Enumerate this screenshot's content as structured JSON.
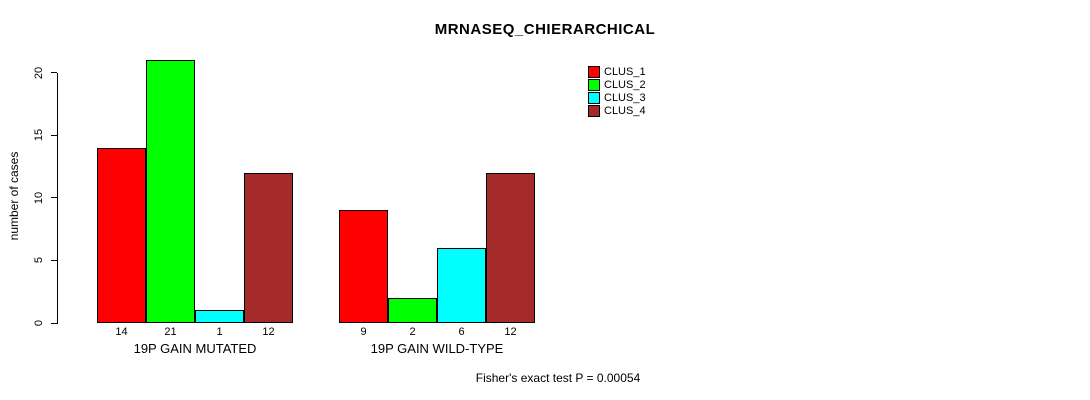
{
  "title": "MRNASEQ_CHIERARCHICAL",
  "annotation": "Fisher's exact test P = 0.00054",
  "chart_data": {
    "type": "bar",
    "title": "MRNASEQ_CHIERARCHICAL",
    "xlabel": "",
    "ylabel": "number of cases",
    "ylim": [
      0,
      20
    ],
    "yticks": [
      0,
      5,
      10,
      15,
      20
    ],
    "grid": false,
    "legend_position": "top-right",
    "categories": [
      "19P GAIN MUTATED",
      "19P GAIN WILD-TYPE"
    ],
    "series": [
      {
        "name": "CLUS_1",
        "color": "#ff0000",
        "values": [
          14,
          9
        ]
      },
      {
        "name": "CLUS_2",
        "color": "#00ff00",
        "values": [
          21,
          2
        ]
      },
      {
        "name": "CLUS_3",
        "color": "#00ffff",
        "values": [
          1,
          6
        ]
      },
      {
        "name": "CLUS_4",
        "color": "#a52a2a",
        "values": [
          12,
          12
        ]
      }
    ],
    "bar_value_labels": [
      [
        14,
        21,
        1,
        12
      ],
      [
        9,
        2,
        6,
        12
      ]
    ],
    "annotation": "Fisher's exact test P = 0.00054"
  }
}
